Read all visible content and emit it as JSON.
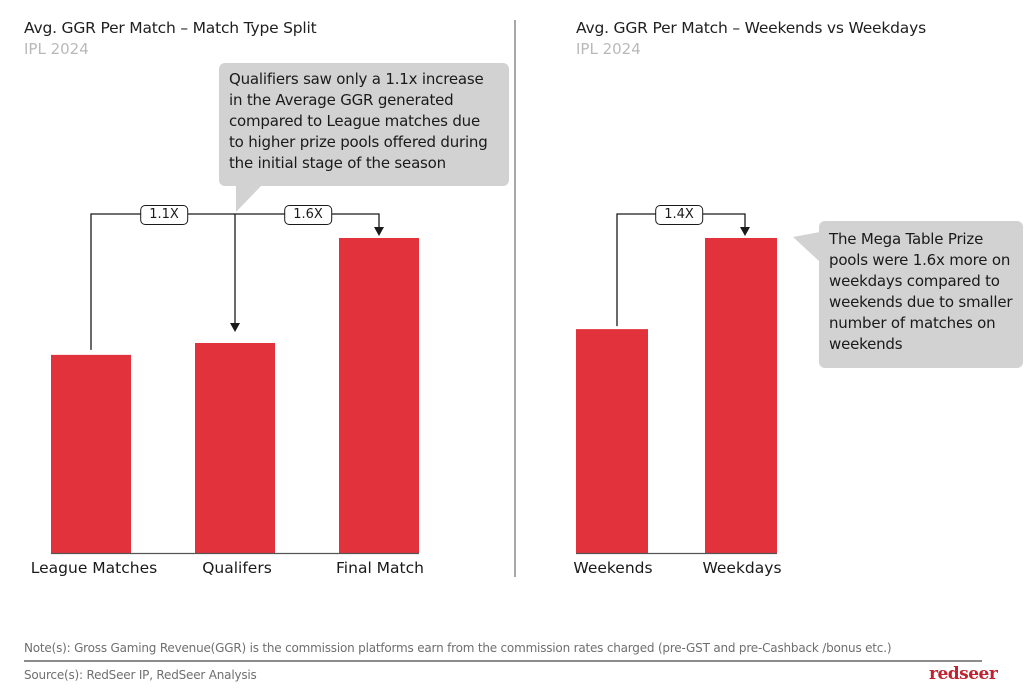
{
  "colors": {
    "bar": "#e2323c",
    "callout_bg": "#d2d2d2",
    "text": "#1a1a1a",
    "subtitle": "#b9b9b9",
    "logo": "#c0232f"
  },
  "left_panel": {
    "title": "Avg. GGR Per Match – Match Type Split",
    "subtitle": "IPL 2024",
    "callout": "Qualifiers saw only a 1.1x increase in the Average GGR generated compared to League matches due to higher prize pools offered during the initial stage of the season",
    "multipliers": [
      "1.1X",
      "1.6X"
    ]
  },
  "right_panel": {
    "title": "Avg. GGR Per Match – Weekends vs Weekdays",
    "subtitle": "IPL 2024",
    "callout": "The Mega Table Prize pools were 1.6x more on weekdays compared to weekends due to smaller number of matches on weekends",
    "multipliers": [
      "1.4X"
    ]
  },
  "chart_data": [
    {
      "type": "bar",
      "title": "Avg. GGR Per Match – Match Type Split",
      "subtitle": "IPL 2024",
      "categories": [
        "League Matches",
        "Qualifers",
        "Final Match"
      ],
      "values": [
        1.0,
        1.06,
        1.59
      ],
      "value_unit": "index (League Matches = 1.0, estimated from bar heights)",
      "annotations": [
        {
          "from": "League Matches",
          "to": "Qualifers",
          "label": "1.1X"
        },
        {
          "from": "League Matches",
          "to": "Final Match",
          "label": "1.6X"
        }
      ],
      "xlabel": "",
      "ylabel": "",
      "ylim": [
        0,
        1.6
      ],
      "grid": false,
      "legend": "none"
    },
    {
      "type": "bar",
      "title": "Avg. GGR Per Match – Weekends vs Weekdays",
      "subtitle": "IPL 2024",
      "categories": [
        "Weekends",
        "Weekdays"
      ],
      "values": [
        1.13,
        1.59
      ],
      "value_unit": "index (League Matches = 1.0, estimated from bar heights)",
      "annotations": [
        {
          "from": "Weekends",
          "to": "Weekdays",
          "label": "1.4X"
        }
      ],
      "xlabel": "",
      "ylabel": "",
      "ylim": [
        0,
        1.6
      ],
      "grid": false,
      "legend": "none"
    }
  ],
  "footer": {
    "note": "Note(s): Gross Gaming Revenue(GGR) is the commission platforms earn from the commission rates charged (pre-GST and pre-Cashback /bonus etc.)",
    "source": "Source(s): RedSeer IP, RedSeer Analysis",
    "logo_text": "redseer"
  }
}
